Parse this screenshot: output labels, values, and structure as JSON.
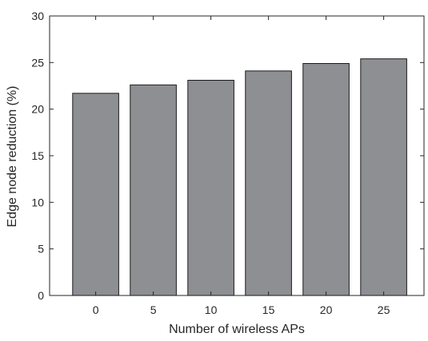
{
  "chart_data": {
    "type": "bar",
    "title": "",
    "xlabel": "Number of wireless APs",
    "ylabel": "Edge node reduction (%)",
    "categories": [
      "0",
      "5",
      "10",
      "15",
      "20",
      "25"
    ],
    "values": [
      21.7,
      22.6,
      23.1,
      24.1,
      24.9,
      25.4
    ],
    "ylim": [
      0,
      30
    ],
    "yticks": [
      "0",
      "5",
      "10",
      "15",
      "20",
      "25",
      "30"
    ],
    "grid": false,
    "legend": "none",
    "bar_color": "#8e8f93",
    "bar_edge_color": "#1a1a1a",
    "axis_color": "#262626"
  }
}
